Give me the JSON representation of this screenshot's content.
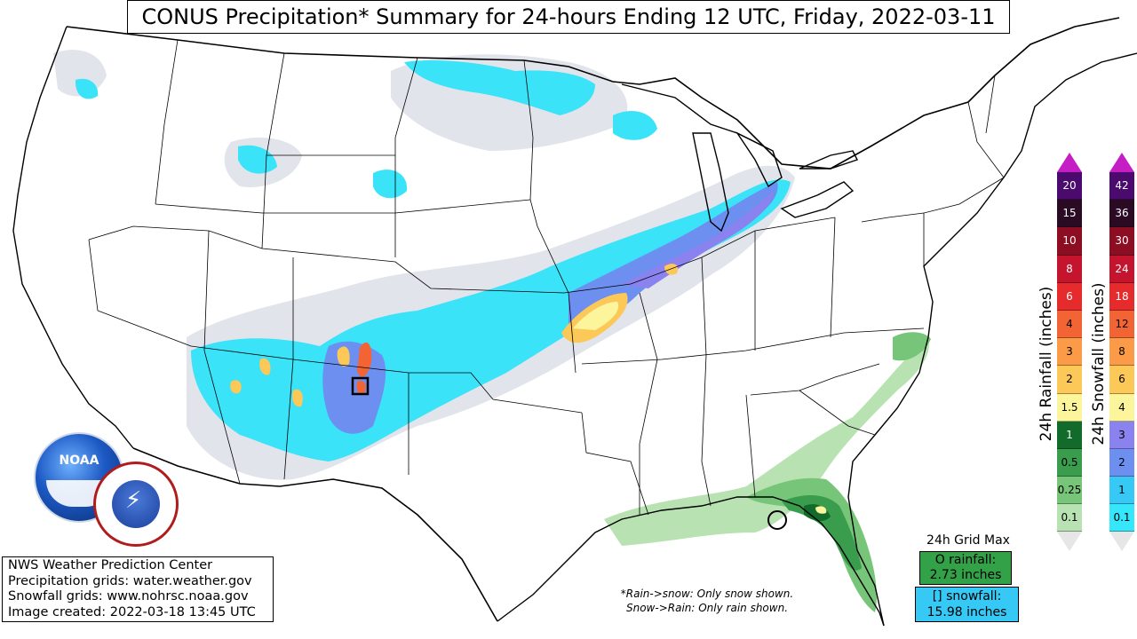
{
  "header": {
    "title": "CONUS Precipitation* Summary for 24-hours Ending 12 UTC, Friday, 2022-03-11"
  },
  "info_box": {
    "line1": "NWS Weather Prediction Center",
    "line2": "Precipitation grids: water.weather.gov",
    "line3": "Snowfall grids: www.nohrsc.noaa.gov",
    "line4": "Image created: 2022-03-18 13:45 UTC"
  },
  "note": {
    "line1": "*Rain->snow: Only snow shown.",
    "line2": "Snow->Rain: Only rain shown."
  },
  "grid_max": {
    "title": "24h Grid Max",
    "rain_label": "O rainfall:",
    "rain_value": "2.73 inches",
    "snow_label": "[] snowfall:",
    "snow_value": "15.98 inches"
  },
  "rain_legend": {
    "label": "24h Rainfall (inches)",
    "levels": [
      "20",
      "15",
      "10",
      "8",
      "6",
      "4",
      "3",
      "2",
      "1.5",
      "1",
      "0.5",
      "0.25",
      "0.1"
    ],
    "colors": [
      "#4a0a6e",
      "#2b0a24",
      "#8d0d22",
      "#c4142e",
      "#e52b2b",
      "#f26433",
      "#fb9b47",
      "#fcc858",
      "#fdf59c",
      "#126b2a",
      "#3a9d4d",
      "#77c578",
      "#b8e2b1"
    ],
    "top_color": "#c41ec4",
    "bottom_color": "#e6e6e6"
  },
  "snow_legend": {
    "label": "24h Snowfall (inches)",
    "levels": [
      "42",
      "36",
      "30",
      "24",
      "18",
      "12",
      "8",
      "6",
      "4",
      "3",
      "2",
      "1",
      "0.1"
    ],
    "colors": [
      "#4a0a6e",
      "#2b0a24",
      "#8d0d22",
      "#c4142e",
      "#e52b2b",
      "#f26433",
      "#fb9b47",
      "#fcc858",
      "#fdf59c",
      "#8a82ee",
      "#6d8ff0",
      "#36c9f5",
      "#36e7fb"
    ],
    "top_color": "#c41ec4",
    "bottom_color": "#e6e6e6"
  },
  "colors": {
    "snow_light": "#e2e4ec",
    "snow_cyan": "#3ae3f8",
    "snow_blue": "#6d8ff0",
    "snow_purple": "#8a82ee",
    "snow_yellow": "#fdf59c",
    "snow_orange": "#fcc858",
    "snow_red": "#f26433",
    "rain_light": "#b8e2b1",
    "rain_mid": "#77c578",
    "rain_dark": "#3a9d4d",
    "rain_darkest": "#126b2a"
  },
  "icons": [
    "noaa-logo",
    "nws-logo"
  ]
}
